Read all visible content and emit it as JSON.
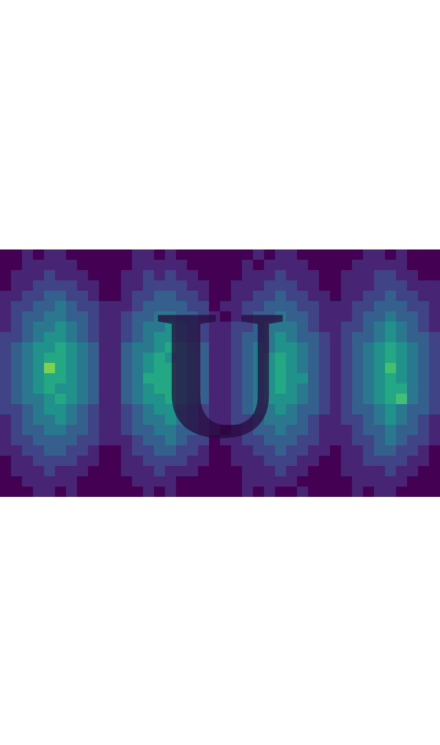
{
  "chart_data": {
    "type": "heatmap",
    "tick_labels": false,
    "color_range": [
      0,
      10
    ],
    "annotations": [
      {
        "text": "U"
      }
    ],
    "z": [
      [
        0,
        0,
        1,
        0,
        1,
        1,
        0,
        0,
        0,
        0,
        0,
        0,
        1,
        1,
        0,
        1,
        0,
        0,
        0,
        0,
        0,
        0,
        0,
        1,
        0,
        1,
        1,
        0,
        0,
        0,
        0,
        0,
        0,
        1,
        1,
        0,
        1,
        0,
        0,
        0
      ],
      [
        0,
        0,
        1,
        1,
        1,
        1,
        1,
        0,
        0,
        0,
        0,
        0,
        1,
        1,
        1,
        1,
        1,
        0,
        0,
        0,
        0,
        0,
        1,
        0,
        1,
        1,
        1,
        1,
        0,
        0,
        0,
        0,
        1,
        1,
        1,
        1,
        1,
        0,
        0,
        0
      ],
      [
        0,
        1,
        1,
        1,
        2,
        1,
        1,
        1,
        0,
        0,
        0,
        1,
        1,
        2,
        1,
        2,
        1,
        1,
        0,
        0,
        0,
        0,
        1,
        1,
        1,
        2,
        1,
        1,
        1,
        0,
        0,
        1,
        1,
        1,
        2,
        2,
        1,
        1,
        0,
        0
      ],
      [
        0,
        1,
        1,
        2,
        2,
        2,
        2,
        1,
        1,
        0,
        0,
        1,
        1,
        2,
        2,
        2,
        2,
        1,
        1,
        0,
        0,
        1,
        1,
        1,
        2,
        2,
        2,
        1,
        1,
        0,
        0,
        1,
        1,
        1,
        2,
        2,
        2,
        1,
        1,
        1
      ],
      [
        1,
        1,
        2,
        2,
        3,
        3,
        2,
        2,
        1,
        0,
        0,
        1,
        2,
        2,
        3,
        3,
        2,
        2,
        1,
        0,
        0,
        1,
        1,
        2,
        2,
        3,
        2,
        2,
        1,
        1,
        0,
        1,
        1,
        2,
        2,
        3,
        2,
        2,
        1,
        1
      ],
      [
        1,
        2,
        2,
        3,
        3,
        4,
        3,
        2,
        2,
        1,
        1,
        1,
        2,
        3,
        3,
        3,
        3,
        2,
        2,
        0,
        1,
        1,
        2,
        2,
        3,
        3,
        3,
        2,
        2,
        1,
        1,
        1,
        2,
        2,
        3,
        3,
        3,
        2,
        2,
        1
      ],
      [
        1,
        2,
        3,
        3,
        4,
        4,
        3,
        3,
        2,
        1,
        1,
        2,
        3,
        3,
        4,
        4,
        3,
        3,
        2,
        1,
        0,
        1,
        2,
        3,
        3,
        4,
        3,
        3,
        2,
        1,
        1,
        1,
        2,
        3,
        3,
        4,
        3,
        3,
        2,
        1
      ],
      [
        1,
        2,
        3,
        4,
        4,
        5,
        4,
        3,
        2,
        1,
        1,
        2,
        3,
        4,
        4,
        5,
        4,
        3,
        2,
        1,
        1,
        2,
        2,
        3,
        4,
        4,
        4,
        3,
        2,
        1,
        1,
        2,
        2,
        3,
        4,
        5,
        4,
        3,
        2,
        1
      ],
      [
        2,
        2,
        3,
        4,
        5,
        5,
        4,
        3,
        2,
        1,
        1,
        2,
        3,
        4,
        5,
        5,
        4,
        3,
        2,
        1,
        1,
        2,
        3,
        3,
        4,
        5,
        4,
        3,
        3,
        2,
        1,
        2,
        3,
        3,
        4,
        5,
        4,
        3,
        3,
        2
      ],
      [
        2,
        3,
        4,
        5,
        5,
        6,
        5,
        4,
        3,
        1,
        1,
        3,
        4,
        4,
        5,
        6,
        5,
        4,
        3,
        1,
        1,
        2,
        3,
        4,
        4,
        5,
        5,
        4,
        3,
        2,
        1,
        2,
        3,
        4,
        5,
        6,
        5,
        4,
        3,
        2
      ],
      [
        2,
        3,
        4,
        5,
        6,
        6,
        5,
        4,
        3,
        1,
        1,
        3,
        4,
        5,
        6,
        5,
        5,
        4,
        3,
        1,
        1,
        2,
        3,
        4,
        5,
        6,
        5,
        4,
        3,
        2,
        1,
        2,
        3,
        4,
        5,
        6,
        5,
        4,
        3,
        2
      ],
      [
        2,
        3,
        4,
        5,
        8,
        6,
        5,
        4,
        3,
        1,
        1,
        3,
        4,
        5,
        6,
        6,
        5,
        4,
        3,
        1,
        1,
        2,
        3,
        4,
        5,
        6,
        5,
        4,
        3,
        2,
        1,
        2,
        3,
        4,
        5,
        7,
        5,
        4,
        3,
        2
      ],
      [
        2,
        3,
        4,
        5,
        6,
        6,
        5,
        4,
        3,
        1,
        1,
        3,
        4,
        6,
        6,
        6,
        5,
        4,
        3,
        1,
        1,
        2,
        3,
        4,
        5,
        6,
        5,
        5,
        3,
        2,
        1,
        2,
        3,
        4,
        5,
        6,
        5,
        4,
        3,
        2
      ],
      [
        2,
        3,
        4,
        5,
        6,
        5,
        5,
        4,
        3,
        1,
        1,
        3,
        4,
        5,
        6,
        6,
        5,
        4,
        3,
        1,
        1,
        2,
        3,
        4,
        5,
        6,
        5,
        4,
        3,
        2,
        1,
        2,
        3,
        4,
        5,
        6,
        6,
        4,
        3,
        2
      ],
      [
        2,
        3,
        4,
        4,
        5,
        6,
        5,
        4,
        3,
        1,
        1,
        3,
        4,
        5,
        5,
        6,
        5,
        4,
        3,
        1,
        1,
        2,
        3,
        4,
        5,
        5,
        5,
        4,
        3,
        2,
        1,
        2,
        3,
        4,
        5,
        6,
        7,
        4,
        3,
        2
      ],
      [
        2,
        2,
        3,
        4,
        5,
        5,
        4,
        3,
        2,
        1,
        1,
        2,
        3,
        4,
        5,
        5,
        4,
        3,
        2,
        1,
        1,
        2,
        3,
        4,
        4,
        5,
        4,
        3,
        3,
        2,
        1,
        2,
        3,
        3,
        4,
        5,
        4,
        3,
        3,
        2
      ],
      [
        1,
        2,
        3,
        4,
        4,
        5,
        4,
        3,
        2,
        1,
        1,
        2,
        3,
        4,
        4,
        5,
        4,
        3,
        2,
        1,
        1,
        2,
        2,
        3,
        4,
        4,
        4,
        3,
        2,
        1,
        1,
        2,
        2,
        3,
        4,
        5,
        4,
        3,
        2,
        1
      ],
      [
        1,
        2,
        3,
        3,
        4,
        4,
        3,
        3,
        2,
        1,
        1,
        2,
        3,
        3,
        4,
        4,
        3,
        3,
        2,
        1,
        0,
        1,
        2,
        3,
        3,
        4,
        3,
        3,
        2,
        1,
        1,
        1,
        2,
        3,
        3,
        4,
        3,
        3,
        2,
        1
      ],
      [
        1,
        2,
        2,
        3,
        3,
        3,
        3,
        2,
        2,
        1,
        1,
        1,
        2,
        3,
        3,
        4,
        3,
        2,
        2,
        0,
        1,
        1,
        2,
        2,
        3,
        3,
        3,
        2,
        2,
        1,
        1,
        1,
        2,
        2,
        3,
        4,
        3,
        2,
        2,
        1
      ],
      [
        1,
        1,
        2,
        2,
        3,
        3,
        2,
        2,
        1,
        0,
        0,
        1,
        2,
        2,
        3,
        3,
        2,
        2,
        1,
        0,
        0,
        1,
        1,
        2,
        2,
        3,
        2,
        2,
        1,
        1,
        0,
        1,
        1,
        2,
        3,
        3,
        2,
        2,
        1,
        0
      ],
      [
        0,
        1,
        1,
        2,
        2,
        2,
        2,
        1,
        1,
        0,
        0,
        1,
        1,
        2,
        2,
        2,
        2,
        1,
        1,
        0,
        0,
        1,
        1,
        1,
        2,
        2,
        2,
        1,
        1,
        0,
        0,
        1,
        1,
        2,
        2,
        2,
        2,
        1,
        1,
        0
      ],
      [
        0,
        1,
        1,
        1,
        2,
        1,
        1,
        1,
        0,
        0,
        0,
        1,
        1,
        1,
        2,
        1,
        1,
        1,
        0,
        0,
        0,
        0,
        1,
        1,
        1,
        2,
        1,
        1,
        0,
        0,
        0,
        1,
        1,
        1,
        1,
        2,
        1,
        1,
        0,
        0
      ],
      [
        0,
        0,
        1,
        1,
        1,
        1,
        1,
        0,
        0,
        0,
        0,
        0,
        1,
        1,
        1,
        1,
        0,
        0,
        0,
        0,
        0,
        0,
        1,
        1,
        1,
        1,
        1,
        0,
        0,
        0,
        0,
        0,
        1,
        1,
        1,
        1,
        1,
        0,
        0,
        0
      ],
      [
        0,
        0,
        0,
        1,
        1,
        0,
        1,
        0,
        0,
        0,
        0,
        0,
        0,
        1,
        0,
        1,
        0,
        0,
        0,
        0,
        0,
        0,
        1,
        0,
        1,
        0,
        0,
        1,
        0,
        0,
        0,
        0,
        1,
        0,
        1,
        1,
        0,
        0,
        0,
        0
      ]
    ]
  }
}
